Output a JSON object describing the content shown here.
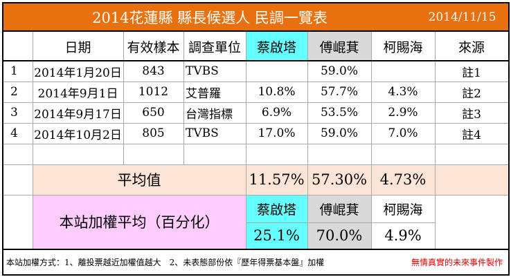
{
  "sheet": {
    "title": "2014花蓮縣 縣長候選人 民調一覽表",
    "date": "2014/11/15",
    "headers": {
      "date": "日期",
      "sample": "有效樣本",
      "org": "調查單位",
      "c1": "蔡啟塔",
      "c2": "傅崐萁",
      "c3": "柯賜海",
      "source": "來源"
    },
    "rows": [
      {
        "no": "1",
        "date": "2014年1月20日",
        "sample": "843",
        "org": "TVBS",
        "c1": "",
        "c2": "59.0%",
        "c3": "",
        "source": "註1"
      },
      {
        "no": "2",
        "date": "2014年9月1日",
        "sample": "1012",
        "org": "艾普羅",
        "c1": "10.8%",
        "c2": "57.7%",
        "c3": "4.3%",
        "source": "註2"
      },
      {
        "no": "3",
        "date": "2014年9月17日",
        "sample": "650",
        "org": "台灣指標",
        "c1": "6.9%",
        "c2": "53.5%",
        "c3": "2.9%",
        "source": "註3"
      },
      {
        "no": "4",
        "date": "2014年10月2日",
        "sample": "805",
        "org": "TVBS",
        "c1": "17.0%",
        "c2": "59.0%",
        "c3": "7.0%",
        "source": "註4"
      }
    ],
    "average": {
      "label": "平均值",
      "c1": "11.57%",
      "c2": "57.30%",
      "c3": "4.73%"
    },
    "weighted": {
      "label": "本站加權平均（百分化）",
      "c1_name": "蔡啟塔",
      "c2_name": "傅崐萁",
      "c3_name": "柯賜海",
      "c1": "25.1%",
      "c2": "70.0%",
      "c3": "4.9%"
    },
    "footer": {
      "method": "本站加權方式：1、離投票越近加權值越大　2、未表態部份依『歷年得票基本盤』加權",
      "credit": "無情真實的未來事件製作"
    },
    "colors": {
      "title_bg": "#e8700e",
      "cand1_bg": "#66ffff",
      "cand2_bg": "#d9d9d9",
      "average_bg": "#fce4d6",
      "weighted_bg": "#ffccff",
      "credit_text": "#e00000"
    }
  }
}
